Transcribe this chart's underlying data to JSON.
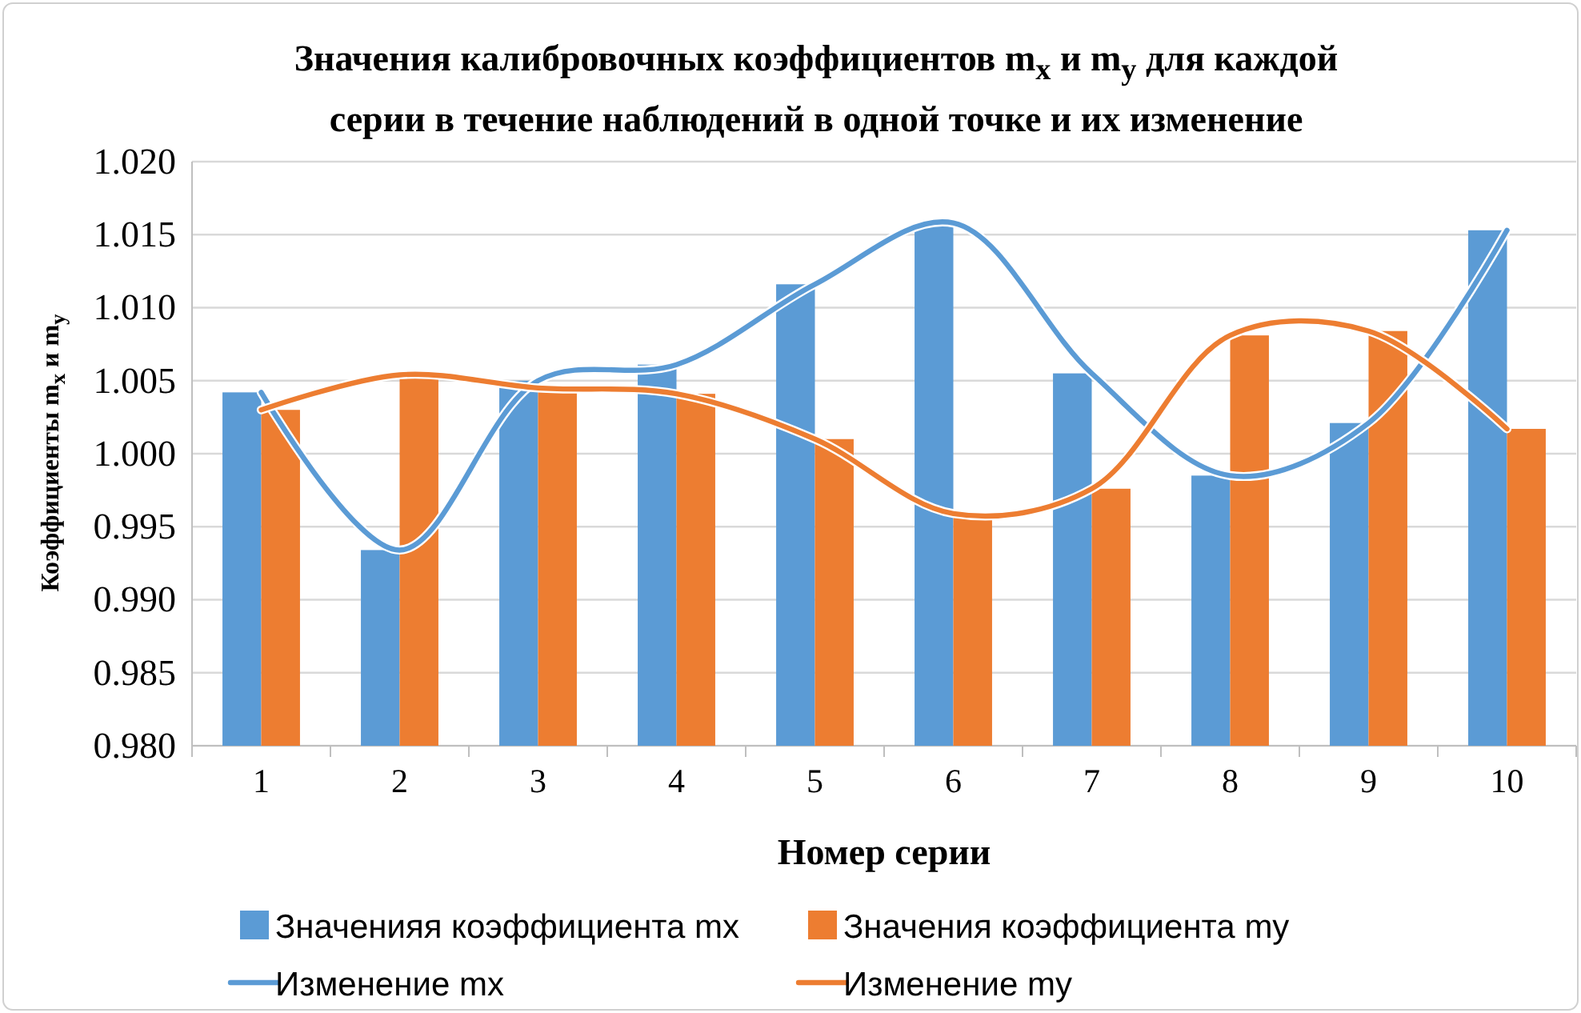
{
  "chart_data": {
    "type": "bar",
    "title": "Значения калибровочных коэффициентов m$_{x}$ и m$_{y}$ для каждой серии в течение наблюдений в одной точке и их изменение",
    "xlabel": "Номер серии",
    "ylabel": "Коэффициенты m$_{x}$ и m$_{y}$",
    "categories": [
      "1",
      "2",
      "3",
      "4",
      "5",
      "6",
      "7",
      "8",
      "9",
      "10"
    ],
    "ylim": [
      0.98,
      1.02
    ],
    "yticks": [
      {
        "value": 0.98,
        "label": "0.980"
      },
      {
        "value": 0.985,
        "label": "0.985"
      },
      {
        "value": 0.99,
        "label": "0.990"
      },
      {
        "value": 0.995,
        "label": "0.995"
      },
      {
        "value": 1.0,
        "label": "1.000"
      },
      {
        "value": 1.005,
        "label": "1.005"
      },
      {
        "value": 1.01,
        "label": "1.010"
      },
      {
        "value": 1.015,
        "label": "1.015"
      },
      {
        "value": 1.02,
        "label": "1.020"
      }
    ],
    "grid": "y",
    "legend": "bottom",
    "series": [
      {
        "name": "Значенияя коэффициента mx",
        "color": "#5b9bd5",
        "values": [
          1.0042,
          0.9934,
          1.005,
          1.0061,
          1.0116,
          1.0158,
          1.0055,
          0.9985,
          1.0021,
          1.0153
        ]
      },
      {
        "name": "Значения коэффициента my",
        "color": "#ed7d31",
        "values": [
          1.003,
          1.0054,
          1.0045,
          1.0041,
          1.001,
          0.9959,
          0.9976,
          1.0081,
          1.0084,
          1.0017
        ]
      },
      {
        "name": "Изменение mx",
        "type": "line",
        "color": "#5b9bd5",
        "values": [
          1.0042,
          0.9934,
          1.005,
          1.0061,
          1.0116,
          1.0158,
          1.0055,
          0.9985,
          1.0021,
          1.0153
        ]
      },
      {
        "name": "Изменение my",
        "type": "line",
        "color": "#ed7d31",
        "values": [
          1.003,
          1.0054,
          1.0045,
          1.0041,
          1.001,
          0.9959,
          0.9976,
          1.0081,
          1.0084,
          1.0017
        ]
      }
    ]
  }
}
